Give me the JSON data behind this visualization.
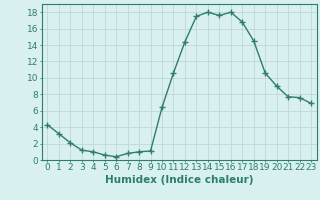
{
  "x": [
    0,
    1,
    2,
    3,
    4,
    5,
    6,
    7,
    8,
    9,
    10,
    11,
    12,
    13,
    14,
    15,
    16,
    17,
    18,
    19,
    20,
    21,
    22,
    23
  ],
  "y": [
    4.3,
    3.2,
    2.1,
    1.2,
    1.0,
    0.6,
    0.4,
    0.8,
    1.0,
    1.1,
    6.4,
    10.6,
    14.4,
    17.5,
    18.0,
    17.6,
    18.0,
    16.8,
    14.5,
    10.6,
    9.0,
    7.7,
    7.6,
    6.9
  ],
  "line_color": "#2e7d6e",
  "marker": "+",
  "marker_size": 4,
  "bg_color": "#d9f0f0",
  "grid_color": "#c0d8d8",
  "xlabel": "Humidex (Indice chaleur)",
  "xlim": [
    -0.5,
    23.5
  ],
  "ylim": [
    0,
    19
  ],
  "yticks": [
    0,
    2,
    4,
    6,
    8,
    10,
    12,
    14,
    16,
    18
  ],
  "xticks": [
    0,
    1,
    2,
    3,
    4,
    5,
    6,
    7,
    8,
    9,
    10,
    11,
    12,
    13,
    14,
    15,
    16,
    17,
    18,
    19,
    20,
    21,
    22,
    23
  ],
  "xlabel_fontsize": 7.5,
  "tick_fontsize": 6.5,
  "line_width": 1.0
}
